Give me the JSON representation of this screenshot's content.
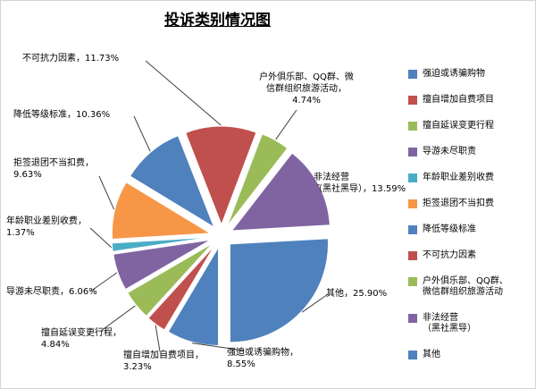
{
  "title": "投诉类别情况图",
  "chart_data": {
    "type": "pie",
    "title": "投诉类别情况图",
    "unit": "%",
    "start_angle_deg": 180,
    "direction": "clockwise",
    "legend_position": "right",
    "exploded": true,
    "slices": [
      {
        "label": "强迫或诱骗购物",
        "value": 8.55,
        "color": "#4F81BD",
        "callout": "强迫或诱骗购物，\n8.55%"
      },
      {
        "label": "擅自增加自费项目",
        "value": 3.23,
        "color": "#C0504D",
        "callout": "擅自增加自费项目，\n3.23%"
      },
      {
        "label": "擅自延误变更行程",
        "value": 4.84,
        "color": "#9BBB59",
        "callout": "擅自延误变更行程，\n4.84%"
      },
      {
        "label": "导游未尽职责",
        "value": 6.06,
        "color": "#8064A2",
        "callout": "导游未尽职责，6.06%"
      },
      {
        "label": "年龄职业差别收费",
        "value": 1.37,
        "color": "#4BACC6",
        "callout": "年龄职业差别收费，\n1.37%"
      },
      {
        "label": "拒签退团不当扣费",
        "value": 9.63,
        "color": "#F79646",
        "callout": "拒签退团不当扣费，\n9.63%"
      },
      {
        "label": "降低等级标准",
        "value": 10.36,
        "color": "#4F81BD",
        "callout": "降低等级标准，10.36%"
      },
      {
        "label": "不可抗力因素",
        "value": 11.73,
        "color": "#C0504D",
        "callout": "不可抗力因素，11.73%"
      },
      {
        "label": "户外俱乐部、QQ群、微信群组织旅游活动",
        "value": 4.74,
        "color": "#9BBB59",
        "callout": "户外俱乐部、QQ群、微\n信群组织旅游活动，\n4.74%"
      },
      {
        "label": "非法经营（黑社黑导）",
        "value": 13.59,
        "color": "#8064A2",
        "callout": "非法经营\n（黑社黑导），13.59%"
      },
      {
        "label": "其他",
        "value": 25.9,
        "color": "#4F81BD",
        "callout": "其他，25.90%"
      }
    ],
    "legend_labels": [
      "强迫或诱骗购物",
      "擅自增加自费项目",
      "擅自延误变更行程",
      "导游未尽职责",
      "年龄职业差别收费",
      "拒签退团不当扣费",
      "降低等级标准",
      "不可抗力因素",
      "户外俱乐部、QQ群、\n微信群组织旅游活动",
      "非法经营\n（黑社黑导）",
      "其他"
    ]
  }
}
